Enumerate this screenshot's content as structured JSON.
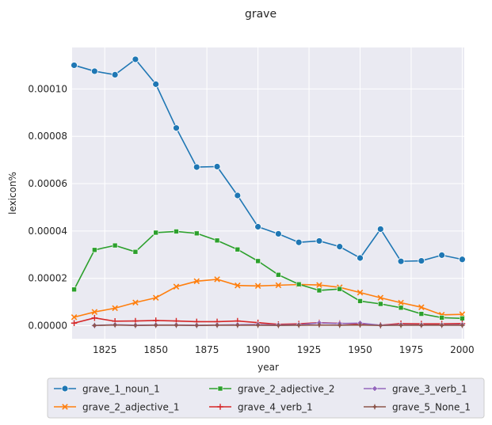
{
  "chart_data": {
    "type": "line",
    "title": "grave",
    "xlabel": "year",
    "ylabel": "lexicon%",
    "xlim": [
      1809,
      2001
    ],
    "ylim": [
      -5.5e-06,
      0.0001175
    ],
    "xticks": [
      1825,
      1850,
      1875,
      1900,
      1925,
      1950,
      1975,
      2000
    ],
    "yticks": [
      0,
      2e-05,
      4e-05,
      6e-05,
      8e-05,
      0.0001
    ],
    "ytick_labels": [
      "0.00000",
      "0.00002",
      "0.00004",
      "0.00006",
      "0.00008",
      "0.00010"
    ],
    "grid": true,
    "legend_position": "below",
    "background": "#eaeaf2",
    "series": [
      {
        "name": "grave_1_noun_1",
        "color": "#1f77b4",
        "marker": "circle",
        "x": [
          1810,
          1820,
          1830,
          1840,
          1850,
          1860,
          1870,
          1880,
          1890,
          1900,
          1910,
          1920,
          1930,
          1940,
          1950,
          1960,
          1970,
          1980,
          1990,
          2000
        ],
        "values": [
          0.00011,
          0.0001075,
          0.000106,
          0.0001125,
          0.000102,
          8.35e-05,
          6.7e-05,
          6.72e-05,
          5.5e-05,
          4.18e-05,
          3.88e-05,
          3.52e-05,
          3.58e-05,
          3.34e-05,
          2.86e-05,
          4.08e-05,
          2.72e-05,
          2.74e-05,
          2.98e-05,
          2.8e-05
        ]
      },
      {
        "name": "grave_2_adjective_1",
        "color": "#ff7f0e",
        "marker": "x",
        "x": [
          1810,
          1820,
          1830,
          1840,
          1850,
          1860,
          1870,
          1880,
          1890,
          1900,
          1910,
          1920,
          1930,
          1940,
          1950,
          1960,
          1970,
          1980,
          1990,
          2000
        ],
        "values": [
          3.6e-06,
          5.8e-06,
          7.4e-06,
          9.8e-06,
          1.18e-05,
          1.65e-05,
          1.88e-05,
          1.96e-05,
          1.7e-05,
          1.68e-05,
          1.71e-05,
          1.74e-05,
          1.72e-05,
          1.62e-05,
          1.4e-05,
          1.18e-05,
          9.7e-06,
          7.8e-06,
          4.6e-06,
          4.8e-06
        ]
      },
      {
        "name": "grave_2_adjective_2",
        "color": "#2ca02c",
        "marker": "square",
        "x": [
          1810,
          1820,
          1830,
          1840,
          1850,
          1860,
          1870,
          1880,
          1890,
          1900,
          1910,
          1920,
          1930,
          1940,
          1950,
          1960,
          1970,
          1980,
          1990,
          2000
        ],
        "values": [
          1.53e-05,
          3.2e-05,
          3.39e-05,
          3.12e-05,
          3.93e-05,
          3.98e-05,
          3.9e-05,
          3.6e-05,
          3.22e-05,
          2.73e-05,
          2.15e-05,
          1.75e-05,
          1.49e-05,
          1.55e-05,
          1.04e-05,
          9.2e-06,
          7.6e-06,
          5e-06,
          3.4e-06,
          3.1e-06
        ]
      },
      {
        "name": "grave_4_verb_1",
        "color": "#d62728",
        "marker": "plus",
        "x": [
          1810,
          1820,
          1830,
          1840,
          1850,
          1860,
          1870,
          1880,
          1890,
          1900,
          1910,
          1920,
          1930,
          1940,
          1950,
          1960,
          1970,
          1980,
          1990,
          2000
        ],
        "values": [
          1.1e-06,
          3.3e-06,
          1.9e-06,
          2e-06,
          2.2e-06,
          2e-06,
          1.7e-06,
          1.7e-06,
          2e-06,
          1.3e-06,
          6e-07,
          8e-07,
          1.3e-06,
          1e-06,
          7e-07,
          2e-07,
          9e-07,
          8e-07,
          8e-07,
          9e-07
        ]
      },
      {
        "name": "grave_3_verb_1",
        "color": "#9467bd",
        "marker": "diamond",
        "x": [
          1820,
          1830,
          1840,
          1850,
          1860,
          1870,
          1880,
          1890,
          1900,
          1910,
          1920,
          1930,
          1940,
          1950,
          1960,
          1970,
          1980,
          1990,
          2000
        ],
        "values": [
          1e-07,
          4e-07,
          2e-07,
          3e-07,
          3e-07,
          2e-07,
          3e-07,
          4e-07,
          5e-07,
          3e-07,
          4e-07,
          1.2e-06,
          9e-07,
          1.1e-06,
          2e-07,
          4e-07,
          3e-07,
          3e-07,
          4e-07
        ]
      },
      {
        "name": "grave_5_None_1",
        "color": "#8c564b",
        "marker": "star",
        "x": [
          1820,
          1830,
          1840,
          1850,
          1860,
          1870,
          1880,
          1890,
          1900,
          1910,
          1920,
          1930,
          1940,
          1950,
          1960,
          1970,
          1980,
          1990,
          2000
        ],
        "values": [
          1e-07,
          3e-07,
          1e-07,
          2e-07,
          2e-07,
          1e-07,
          2e-07,
          2e-07,
          2e-07,
          1e-07,
          2e-07,
          3e-07,
          2e-07,
          3e-07,
          1e-07,
          2e-07,
          2e-07,
          2e-07,
          2e-07
        ]
      }
    ]
  }
}
